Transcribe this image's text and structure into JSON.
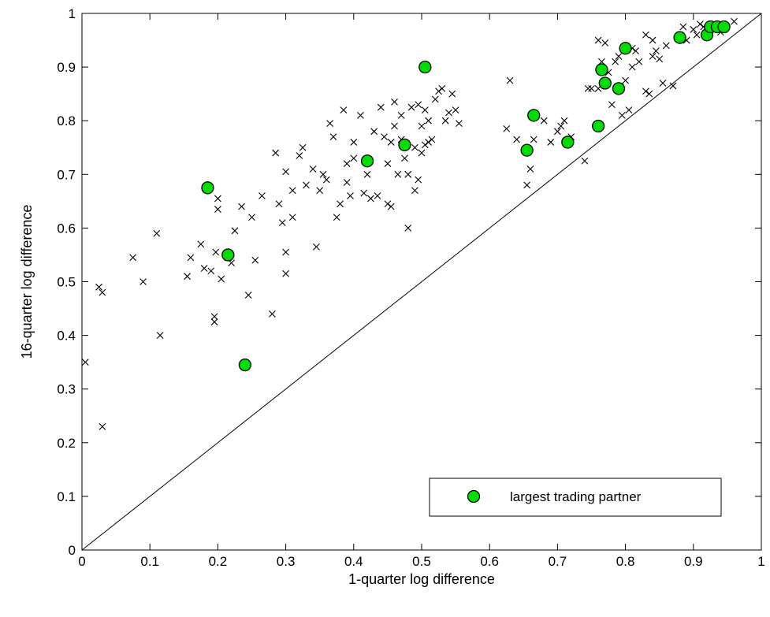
{
  "chart_data": {
    "type": "scatter",
    "title": "",
    "xlabel": "1-quarter log difference",
    "ylabel": "16-quarter log difference",
    "xlim": [
      0,
      1
    ],
    "ylim": [
      0,
      1
    ],
    "xticks": [
      "0",
      "0.1",
      "0.2",
      "0.3",
      "0.4",
      "0.5",
      "0.6",
      "0.7",
      "0.8",
      "0.9",
      "1"
    ],
    "yticks": [
      "0",
      "0.1",
      "0.2",
      "0.3",
      "0.4",
      "0.5",
      "0.6",
      "0.7",
      "0.8",
      "0.9",
      "1"
    ],
    "grid": false,
    "reference_line": {
      "x": [
        0,
        1
      ],
      "y": [
        0,
        1
      ]
    },
    "legend": {
      "position": "bottom-right",
      "entries": [
        "largest trading partner"
      ]
    },
    "colors": {
      "highlight_fill": "#00dd00",
      "highlight_edge": "#000000",
      "marker": "#000000"
    },
    "series": [
      {
        "marker": "x",
        "points": [
          [
            0.005,
            0.35
          ],
          [
            0.025,
            0.49
          ],
          [
            0.03,
            0.48
          ],
          [
            0.03,
            0.23
          ],
          [
            0.075,
            0.545
          ],
          [
            0.09,
            0.5
          ],
          [
            0.11,
            0.59
          ],
          [
            0.115,
            0.4
          ],
          [
            0.155,
            0.51
          ],
          [
            0.16,
            0.545
          ],
          [
            0.175,
            0.57
          ],
          [
            0.18,
            0.525
          ],
          [
            0.19,
            0.52
          ],
          [
            0.195,
            0.425
          ],
          [
            0.195,
            0.435
          ],
          [
            0.197,
            0.555
          ],
          [
            0.2,
            0.635
          ],
          [
            0.2,
            0.655
          ],
          [
            0.205,
            0.505
          ],
          [
            0.215,
            0.545
          ],
          [
            0.22,
            0.535
          ],
          [
            0.225,
            0.595
          ],
          [
            0.235,
            0.64
          ],
          [
            0.245,
            0.475
          ],
          [
            0.25,
            0.62
          ],
          [
            0.255,
            0.54
          ],
          [
            0.265,
            0.66
          ],
          [
            0.28,
            0.44
          ],
          [
            0.285,
            0.74
          ],
          [
            0.29,
            0.645
          ],
          [
            0.295,
            0.61
          ],
          [
            0.3,
            0.515
          ],
          [
            0.3,
            0.555
          ],
          [
            0.3,
            0.705
          ],
          [
            0.31,
            0.62
          ],
          [
            0.31,
            0.67
          ],
          [
            0.32,
            0.735
          ],
          [
            0.325,
            0.75
          ],
          [
            0.33,
            0.68
          ],
          [
            0.34,
            0.71
          ],
          [
            0.345,
            0.565
          ],
          [
            0.35,
            0.67
          ],
          [
            0.355,
            0.7
          ],
          [
            0.36,
            0.69
          ],
          [
            0.365,
            0.795
          ],
          [
            0.37,
            0.77
          ],
          [
            0.375,
            0.62
          ],
          [
            0.38,
            0.645
          ],
          [
            0.385,
            0.82
          ],
          [
            0.39,
            0.72
          ],
          [
            0.39,
            0.685
          ],
          [
            0.395,
            0.66
          ],
          [
            0.4,
            0.73
          ],
          [
            0.4,
            0.76
          ],
          [
            0.41,
            0.81
          ],
          [
            0.415,
            0.665
          ],
          [
            0.42,
            0.7
          ],
          [
            0.425,
            0.655
          ],
          [
            0.43,
            0.78
          ],
          [
            0.435,
            0.66
          ],
          [
            0.44,
            0.825
          ],
          [
            0.445,
            0.77
          ],
          [
            0.45,
            0.645
          ],
          [
            0.45,
            0.72
          ],
          [
            0.455,
            0.64
          ],
          [
            0.455,
            0.76
          ],
          [
            0.46,
            0.835
          ],
          [
            0.46,
            0.79
          ],
          [
            0.465,
            0.7
          ],
          [
            0.47,
            0.765
          ],
          [
            0.47,
            0.81
          ],
          [
            0.475,
            0.73
          ],
          [
            0.48,
            0.6
          ],
          [
            0.48,
            0.7
          ],
          [
            0.485,
            0.825
          ],
          [
            0.49,
            0.67
          ],
          [
            0.49,
            0.75
          ],
          [
            0.495,
            0.69
          ],
          [
            0.495,
            0.83
          ],
          [
            0.5,
            0.74
          ],
          [
            0.5,
            0.79
          ],
          [
            0.505,
            0.755
          ],
          [
            0.505,
            0.82
          ],
          [
            0.51,
            0.76
          ],
          [
            0.51,
            0.8
          ],
          [
            0.515,
            0.765
          ],
          [
            0.52,
            0.84
          ],
          [
            0.525,
            0.855
          ],
          [
            0.53,
            0.86
          ],
          [
            0.535,
            0.8
          ],
          [
            0.54,
            0.815
          ],
          [
            0.545,
            0.85
          ],
          [
            0.55,
            0.82
          ],
          [
            0.555,
            0.795
          ],
          [
            0.625,
            0.785
          ],
          [
            0.63,
            0.875
          ],
          [
            0.64,
            0.765
          ],
          [
            0.655,
            0.68
          ],
          [
            0.66,
            0.71
          ],
          [
            0.665,
            0.765
          ],
          [
            0.68,
            0.8
          ],
          [
            0.69,
            0.76
          ],
          [
            0.7,
            0.78
          ],
          [
            0.705,
            0.79
          ],
          [
            0.71,
            0.8
          ],
          [
            0.72,
            0.77
          ],
          [
            0.74,
            0.725
          ],
          [
            0.745,
            0.86
          ],
          [
            0.75,
            0.86
          ],
          [
            0.76,
            0.86
          ],
          [
            0.76,
            0.95
          ],
          [
            0.765,
            0.91
          ],
          [
            0.77,
            0.87
          ],
          [
            0.77,
            0.945
          ],
          [
            0.775,
            0.89
          ],
          [
            0.78,
            0.83
          ],
          [
            0.785,
            0.91
          ],
          [
            0.79,
            0.92
          ],
          [
            0.795,
            0.81
          ],
          [
            0.8,
            0.875
          ],
          [
            0.805,
            0.82
          ],
          [
            0.81,
            0.9
          ],
          [
            0.81,
            0.935
          ],
          [
            0.815,
            0.93
          ],
          [
            0.82,
            0.91
          ],
          [
            0.83,
            0.855
          ],
          [
            0.83,
            0.96
          ],
          [
            0.835,
            0.85
          ],
          [
            0.84,
            0.95
          ],
          [
            0.84,
            0.92
          ],
          [
            0.845,
            0.93
          ],
          [
            0.85,
            0.915
          ],
          [
            0.855,
            0.87
          ],
          [
            0.86,
            0.94
          ],
          [
            0.87,
            0.865
          ],
          [
            0.88,
            0.96
          ],
          [
            0.885,
            0.975
          ],
          [
            0.89,
            0.95
          ],
          [
            0.9,
            0.97
          ],
          [
            0.905,
            0.96
          ],
          [
            0.91,
            0.98
          ],
          [
            0.915,
            0.975
          ],
          [
            0.92,
            0.965
          ],
          [
            0.925,
            0.97
          ],
          [
            0.935,
            0.975
          ],
          [
            0.94,
            0.965
          ],
          [
            0.945,
            0.97
          ],
          [
            0.96,
            0.985
          ]
        ]
      },
      {
        "name": "largest trading partner",
        "marker": "o",
        "points": [
          [
            0.185,
            0.675
          ],
          [
            0.215,
            0.55
          ],
          [
            0.24,
            0.345
          ],
          [
            0.42,
            0.725
          ],
          [
            0.475,
            0.755
          ],
          [
            0.505,
            0.9
          ],
          [
            0.655,
            0.745
          ],
          [
            0.665,
            0.81
          ],
          [
            0.715,
            0.76
          ],
          [
            0.76,
            0.79
          ],
          [
            0.765,
            0.895
          ],
          [
            0.77,
            0.87
          ],
          [
            0.79,
            0.86
          ],
          [
            0.8,
            0.935
          ],
          [
            0.88,
            0.955
          ],
          [
            0.92,
            0.96
          ],
          [
            0.925,
            0.975
          ],
          [
            0.935,
            0.975
          ],
          [
            0.945,
            0.975
          ]
        ]
      }
    ]
  }
}
